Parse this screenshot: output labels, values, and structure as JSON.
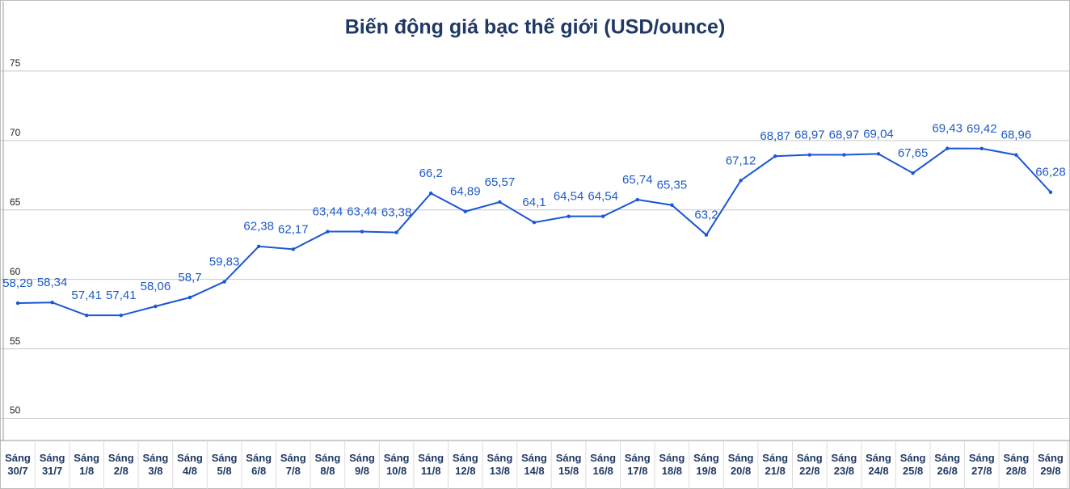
{
  "chart_data": {
    "type": "line",
    "title": "Biến động giá bạc thế giới (USD/ounce)",
    "categories": [
      "Sáng 30/7",
      "Sáng 31/7",
      "Sáng 1/8",
      "Sáng 2/8",
      "Sáng 3/8",
      "Sáng 4/8",
      "Sáng 5/8",
      "Sáng 6/8",
      "Sáng 7/8",
      "Sáng 8/8",
      "Sáng 9/8",
      "Sáng 10/8",
      "Sáng 11/8",
      "Sáng 12/8",
      "Sáng 13/8",
      "Sáng 14/8",
      "Sáng 15/8",
      "Sáng 16/8",
      "Sáng 17/8",
      "Sáng 18/8",
      "Sáng 19/8",
      "Sáng 20/8",
      "Sáng 21/8",
      "Sáng 22/8",
      "Sáng 23/8",
      "Sáng 24/8",
      "Sáng 25/8",
      "Sáng 26/8",
      "Sáng 27/8",
      "Sáng 28/8",
      "Sáng 29/8"
    ],
    "values": [
      58.29,
      58.34,
      57.41,
      57.41,
      58.06,
      58.7,
      59.83,
      62.38,
      62.17,
      63.44,
      63.44,
      63.38,
      66.2,
      64.89,
      65.57,
      64.1,
      64.54,
      64.54,
      65.74,
      65.35,
      63.2,
      67.12,
      68.87,
      68.97,
      68.97,
      69.04,
      67.65,
      69.43,
      69.42,
      68.96,
      66.28
    ],
    "value_labels": [
      "58,29",
      "58,34",
      "57,41",
      "57,41",
      "58,06",
      "58,7",
      "59,83",
      "62,38",
      "62,17",
      "63,44",
      "63,44",
      "63,38",
      "66,2",
      "64,89",
      "65,57",
      "64,1",
      "64,54",
      "64,54",
      "65,74",
      "65,35",
      "63,2",
      "67,12",
      "68,87",
      "68,97",
      "68,97",
      "69,04",
      "67,65",
      "69,43",
      "69,42",
      "68,96",
      "66,28"
    ],
    "color": "#1a56d6",
    "ylim": [
      48.4,
      80
    ],
    "yticks": [
      50,
      55,
      60,
      65,
      70,
      75
    ],
    "grid": true
  }
}
